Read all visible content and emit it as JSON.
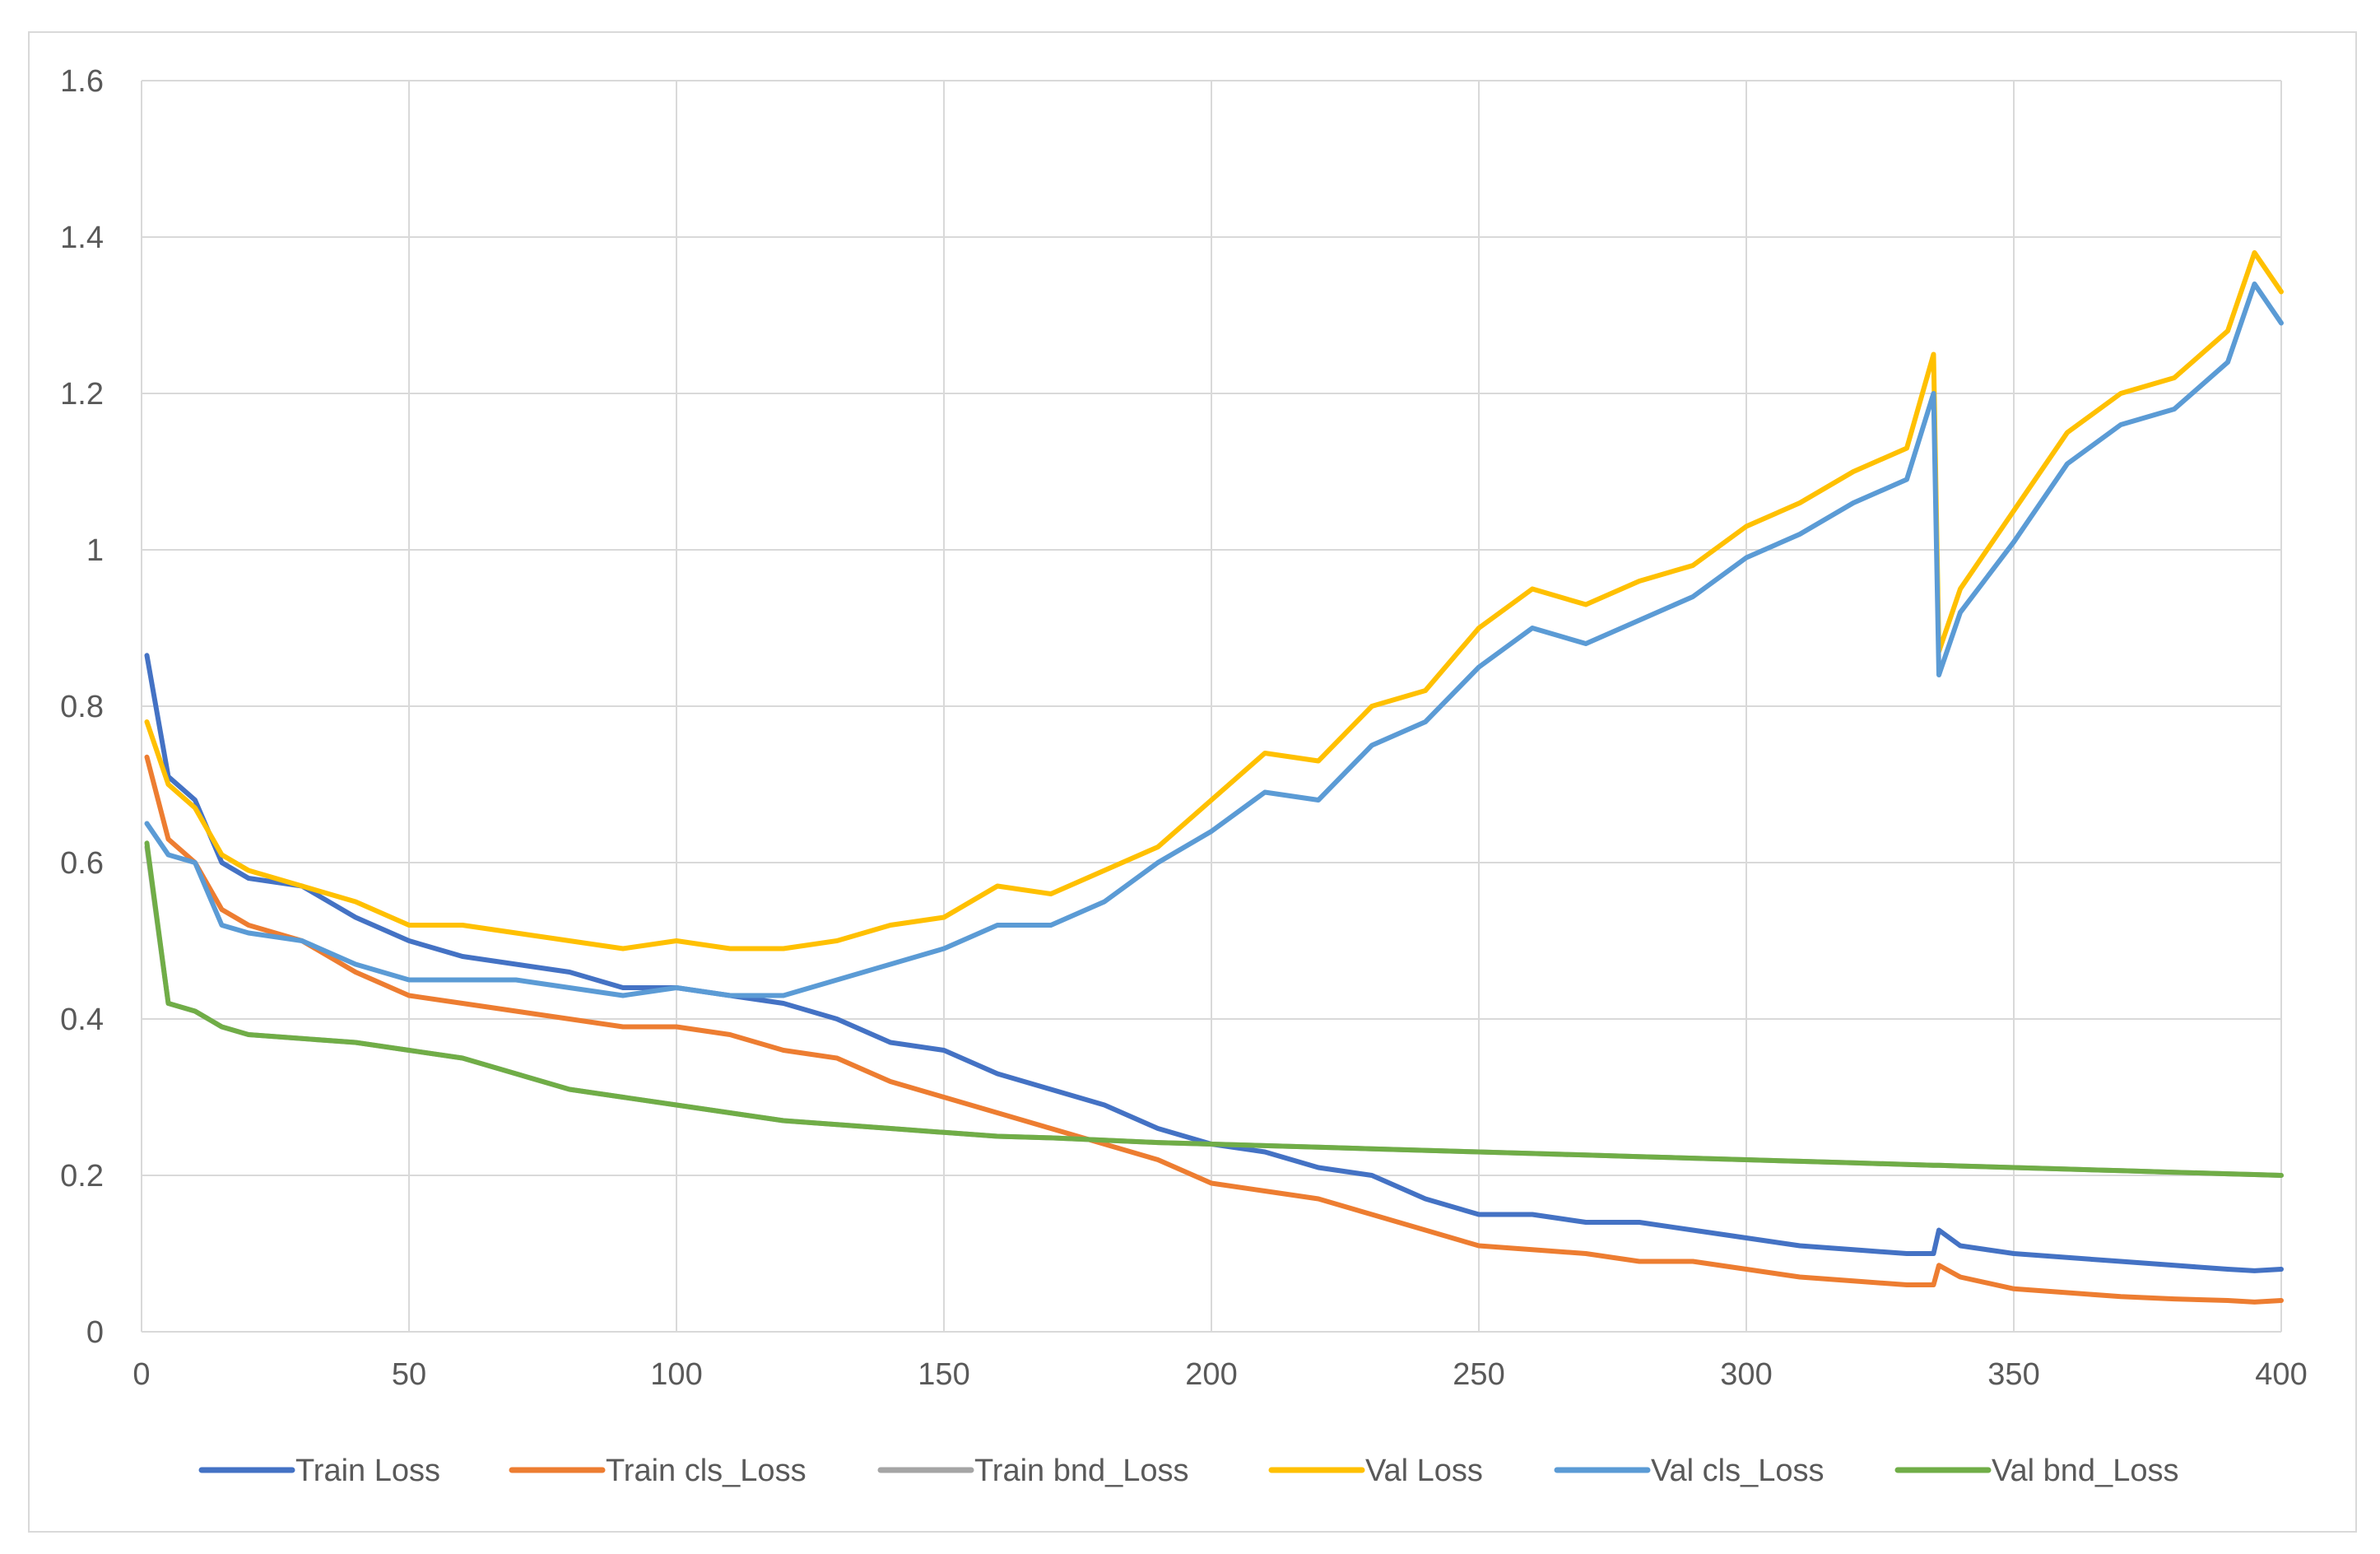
{
  "chart_data": {
    "type": "line",
    "title": "",
    "xlabel": "",
    "ylabel": "",
    "xlim": [
      0,
      400
    ],
    "ylim": [
      0,
      1.6
    ],
    "x_ticks": [
      "0",
      "50",
      "100",
      "150",
      "200",
      "250",
      "300",
      "350",
      "400"
    ],
    "y_ticks": [
      "0",
      "0.2",
      "0.4",
      "0.6",
      "0.8",
      "1",
      "1.2",
      "1.4",
      "1.6"
    ],
    "grid": true,
    "legend_position": "bottom",
    "x": [
      1,
      5,
      10,
      15,
      20,
      30,
      40,
      50,
      60,
      70,
      80,
      90,
      100,
      110,
      120,
      130,
      140,
      150,
      160,
      170,
      180,
      190,
      200,
      210,
      220,
      230,
      240,
      250,
      260,
      270,
      280,
      290,
      300,
      310,
      320,
      330,
      335,
      336,
      340,
      350,
      360,
      370,
      380,
      390,
      395,
      400
    ],
    "series": [
      {
        "name": "Train Loss",
        "color": "#4472C4",
        "values": [
          0.865,
          0.71,
          0.68,
          0.6,
          0.58,
          0.57,
          0.53,
          0.5,
          0.48,
          0.47,
          0.46,
          0.44,
          0.44,
          0.43,
          0.42,
          0.4,
          0.37,
          0.36,
          0.33,
          0.31,
          0.29,
          0.26,
          0.24,
          0.23,
          0.21,
          0.2,
          0.17,
          0.15,
          0.15,
          0.14,
          0.14,
          0.13,
          0.12,
          0.11,
          0.105,
          0.1,
          0.1,
          0.13,
          0.11,
          0.1,
          0.095,
          0.09,
          0.085,
          0.08,
          0.078,
          0.08
        ]
      },
      {
        "name": "Train cls_Loss",
        "color": "#ED7D31",
        "values": [
          0.735,
          0.63,
          0.6,
          0.54,
          0.52,
          0.5,
          0.46,
          0.43,
          0.42,
          0.41,
          0.4,
          0.39,
          0.39,
          0.38,
          0.36,
          0.35,
          0.32,
          0.3,
          0.28,
          0.26,
          0.24,
          0.22,
          0.19,
          0.18,
          0.17,
          0.15,
          0.13,
          0.11,
          0.105,
          0.1,
          0.09,
          0.09,
          0.08,
          0.07,
          0.065,
          0.06,
          0.06,
          0.085,
          0.07,
          0.055,
          0.05,
          0.045,
          0.042,
          0.04,
          0.038,
          0.04
        ]
      },
      {
        "name": "Train bnd_Loss",
        "color": "#A5A5A5",
        "values": [
          0.62,
          0.42,
          0.41,
          0.39,
          0.38,
          0.375,
          0.37,
          0.36,
          0.35,
          0.33,
          0.31,
          0.3,
          0.29,
          0.28,
          0.27,
          0.265,
          0.26,
          0.255,
          0.25,
          0.248,
          0.245,
          0.242,
          0.24,
          0.238,
          0.236,
          0.234,
          0.232,
          0.23,
          0.228,
          0.226,
          0.224,
          0.222,
          0.22,
          0.218,
          0.216,
          0.214,
          0.213,
          0.213,
          0.212,
          0.21,
          0.208,
          0.206,
          0.204,
          0.202,
          0.201,
          0.2
        ]
      },
      {
        "name": "Val Loss",
        "color": "#FFC000",
        "values": [
          0.78,
          0.7,
          0.67,
          0.61,
          0.59,
          0.57,
          0.55,
          0.52,
          0.52,
          0.51,
          0.5,
          0.49,
          0.5,
          0.49,
          0.49,
          0.5,
          0.52,
          0.53,
          0.57,
          0.56,
          0.59,
          0.62,
          0.68,
          0.74,
          0.73,
          0.8,
          0.82,
          0.9,
          0.95,
          0.93,
          0.96,
          0.98,
          1.03,
          1.06,
          1.1,
          1.13,
          1.25,
          0.87,
          0.95,
          1.05,
          1.15,
          1.2,
          1.22,
          1.28,
          1.38,
          1.33
        ]
      },
      {
        "name": "Val cls_Loss",
        "color": "#5B9BD5",
        "values": [
          0.65,
          0.61,
          0.6,
          0.52,
          0.51,
          0.5,
          0.47,
          0.45,
          0.45,
          0.45,
          0.44,
          0.43,
          0.44,
          0.43,
          0.43,
          0.45,
          0.47,
          0.49,
          0.52,
          0.52,
          0.55,
          0.6,
          0.64,
          0.69,
          0.68,
          0.75,
          0.78,
          0.85,
          0.9,
          0.88,
          0.91,
          0.94,
          0.99,
          1.02,
          1.06,
          1.09,
          1.2,
          0.84,
          0.92,
          1.01,
          1.11,
          1.16,
          1.18,
          1.24,
          1.34,
          1.29
        ]
      },
      {
        "name": "Val bnd_Loss",
        "color": "#70AD47",
        "values": [
          0.625,
          0.42,
          0.41,
          0.39,
          0.38,
          0.375,
          0.37,
          0.36,
          0.35,
          0.33,
          0.31,
          0.3,
          0.29,
          0.28,
          0.27,
          0.265,
          0.26,
          0.255,
          0.25,
          0.248,
          0.245,
          0.242,
          0.24,
          0.238,
          0.236,
          0.234,
          0.232,
          0.23,
          0.228,
          0.226,
          0.224,
          0.222,
          0.22,
          0.218,
          0.216,
          0.214,
          0.213,
          0.213,
          0.212,
          0.21,
          0.208,
          0.206,
          0.204,
          0.202,
          0.201,
          0.2
        ]
      }
    ]
  }
}
